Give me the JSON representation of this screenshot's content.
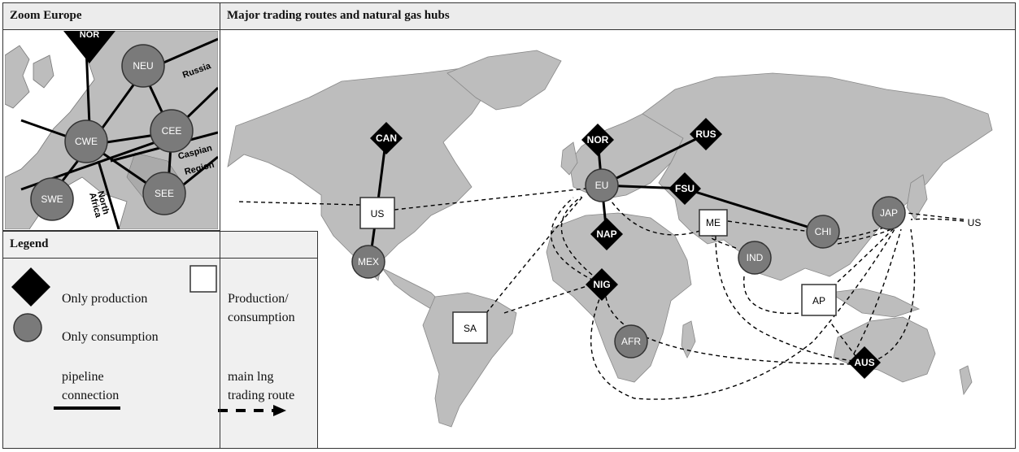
{
  "panels": {
    "zoom_title": "Zoom Europe",
    "main_title": "Major trading routes and natural gas hubs",
    "legend_title": "Legend"
  },
  "legend": {
    "only_production": "Only production",
    "only_consumption": "Only consumption",
    "production_consumption_line1": "Production/",
    "production_consumption_line2": "consumption",
    "pipeline_line1": "pipeline",
    "pipeline_line2": "connection",
    "lng_line1": "main lng",
    "lng_line2": "trading route"
  },
  "hubs": {
    "CAN": "CAN",
    "NOR": "NOR",
    "RUS": "RUS",
    "FSU": "FSU",
    "NAP": "NAP",
    "NIG": "NIG",
    "AUS": "AUS",
    "EU": "EU",
    "MEX": "MEX",
    "AFR": "AFR",
    "IND": "IND",
    "CHI": "CHI",
    "JAP": "JAP",
    "US": "US",
    "ME": "ME",
    "SA": "SA",
    "AP": "AP",
    "US_EAST": "US"
  },
  "zoom": {
    "NOR": "NOR",
    "NEU": "NEU",
    "CWE": "CWE",
    "CEE": "CEE",
    "SWE": "SWE",
    "SEE": "SEE",
    "russia": "Russia",
    "caspian": "Caspian",
    "region": "Region",
    "north": "North",
    "africa": "Africa"
  },
  "colors": {
    "land": "#bdbdbd",
    "consumer": "#7a7a7a",
    "producer": "#000000",
    "panel": "#f0f0f0"
  }
}
